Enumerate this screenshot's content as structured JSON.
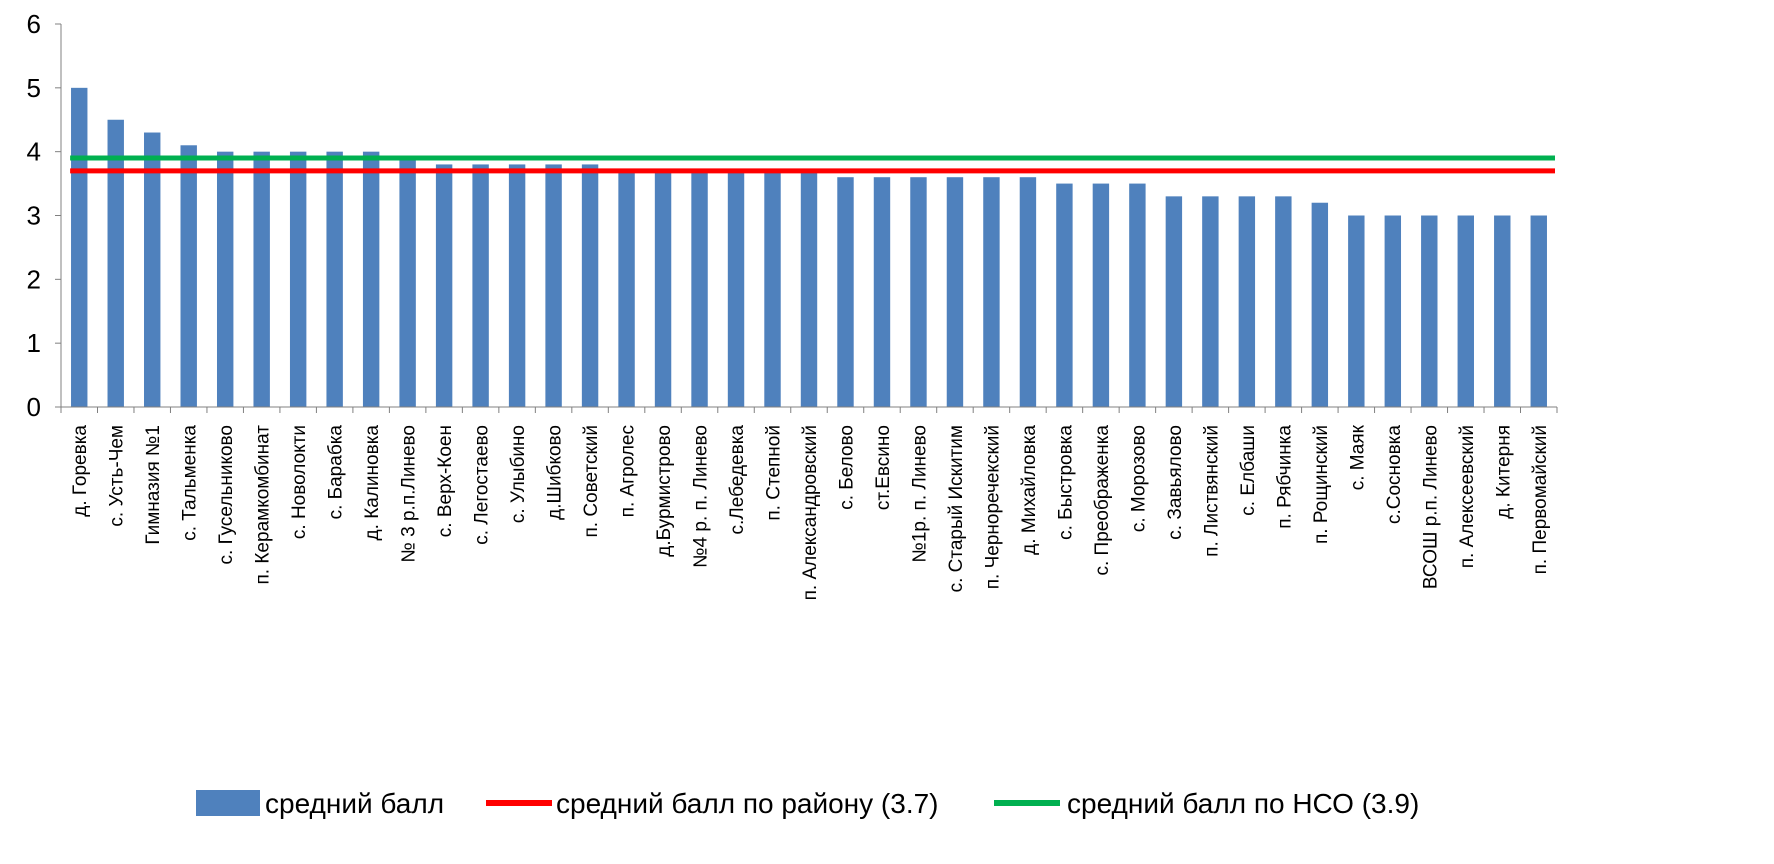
{
  "chart_data": {
    "type": "bar",
    "title": "",
    "xlabel": "",
    "ylabel": "",
    "ylim": [
      0,
      6
    ],
    "yticks": [
      "0",
      "1",
      "2",
      "3",
      "4",
      "5",
      "6"
    ],
    "grid": false,
    "legend_position": "bottom",
    "categories": [
      "д. Горевка",
      "с. Усть-Чем",
      "Гимназия №1",
      "с. Тальменка",
      "с. Гусельниково",
      "п. Керамкомбинат",
      "с. Новолокти",
      "с. Барабка",
      "д. Калиновка",
      "№ 3 р.п.Линево",
      "с. Верх-Коен",
      "с. Легостаево",
      "с. Улыбино",
      "д.Шибково",
      "п. Советский",
      "п. Агролес",
      "д.Бурмистрово",
      "№4 р. п. Линево",
      "с.Лебедевка",
      "п. Степной",
      "п. Александровский",
      "с. Белово",
      "ст.Евсино",
      "№1р. п. Линево",
      "с. Старый Искитим",
      "п. Черноречекский",
      "д. Михайловка",
      "с. Быстровка",
      "с. Преображенка",
      "с. Морозово",
      "с. Завьялово",
      "п. Листвянский",
      "с. Елбаши",
      "п. Рябчинка",
      "п. Рощинский",
      "с. Маяк",
      "с.Сосновка",
      "ВСОШ р.п. Линево",
      "п. Алексеевский",
      "д. Китерня",
      "п. Первомайский"
    ],
    "series": [
      {
        "name": "средний балл",
        "kind": "bar",
        "color": "#4f81bd",
        "values": [
          5.0,
          4.5,
          4.3,
          4.1,
          4.0,
          4.0,
          4.0,
          4.0,
          4.0,
          3.9,
          3.8,
          3.8,
          3.8,
          3.8,
          3.8,
          3.7,
          3.7,
          3.7,
          3.7,
          3.7,
          3.7,
          3.6,
          3.6,
          3.6,
          3.6,
          3.6,
          3.6,
          3.5,
          3.5,
          3.5,
          3.3,
          3.3,
          3.3,
          3.3,
          3.2,
          3.0,
          3.0,
          3.0,
          3.0,
          3.0,
          3.0
        ]
      },
      {
        "name": "средний балл по району (3.7)",
        "kind": "line",
        "color": "#ff0000",
        "value": 3.7
      },
      {
        "name": "средний балл по НСО (3.9)",
        "kind": "line",
        "color": "#00b050",
        "value": 3.9
      }
    ]
  }
}
